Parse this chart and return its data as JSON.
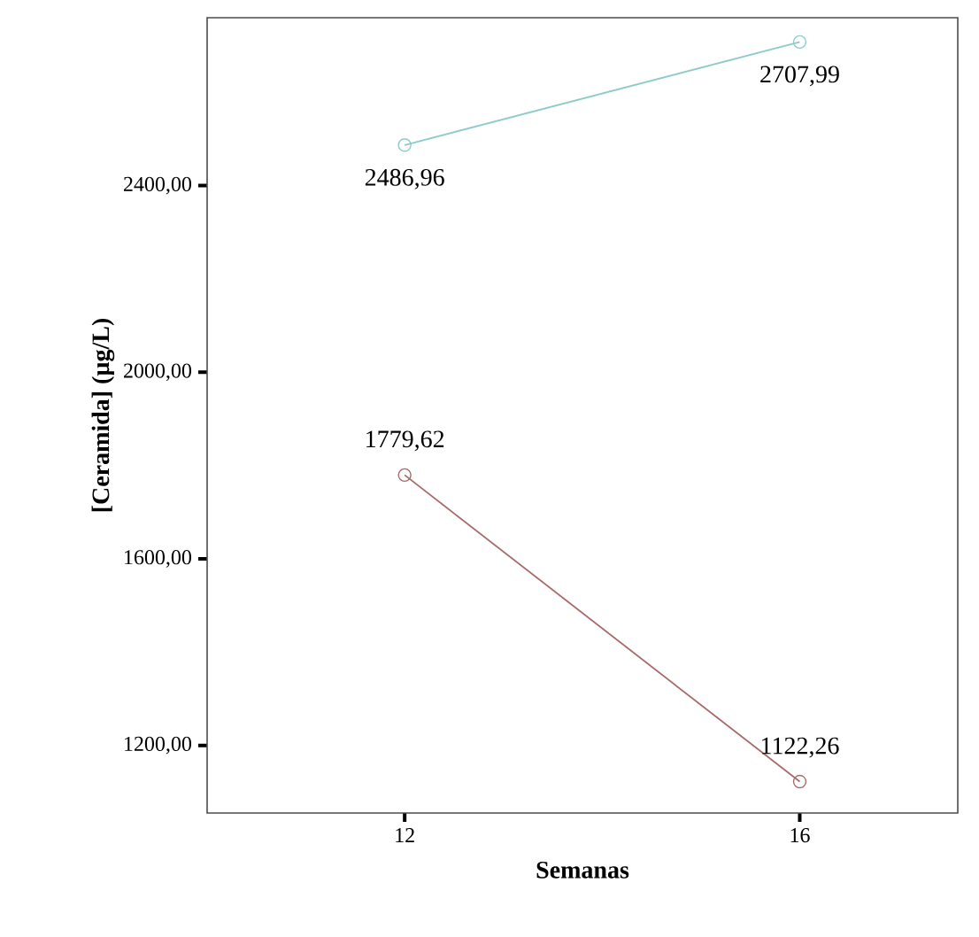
{
  "chart_data": {
    "type": "line",
    "xlabel": "Semanas",
    "ylabel": "[Ceramida] (µg/L)",
    "categories": [
      "12",
      "16"
    ],
    "series": [
      {
        "color": "#8ecbc8",
        "values": [
          2486.96,
          2707.99
        ],
        "value_labels": [
          "2486,96",
          "2707,99"
        ]
      },
      {
        "color": "#a86a68",
        "values": [
          1779.62,
          1122.26
        ],
        "value_labels": [
          "1779,62",
          "1122,26"
        ]
      }
    ],
    "ylim": [
      1055,
      2760
    ],
    "yticks": [
      {
        "value": 1200,
        "label": "1200,00"
      },
      {
        "value": 1600,
        "label": "1600,00"
      },
      {
        "value": 2000,
        "label": "2000,00"
      },
      {
        "value": 2400,
        "label": "2400,00"
      }
    ],
    "marker": "circle",
    "line_style": "solid"
  }
}
